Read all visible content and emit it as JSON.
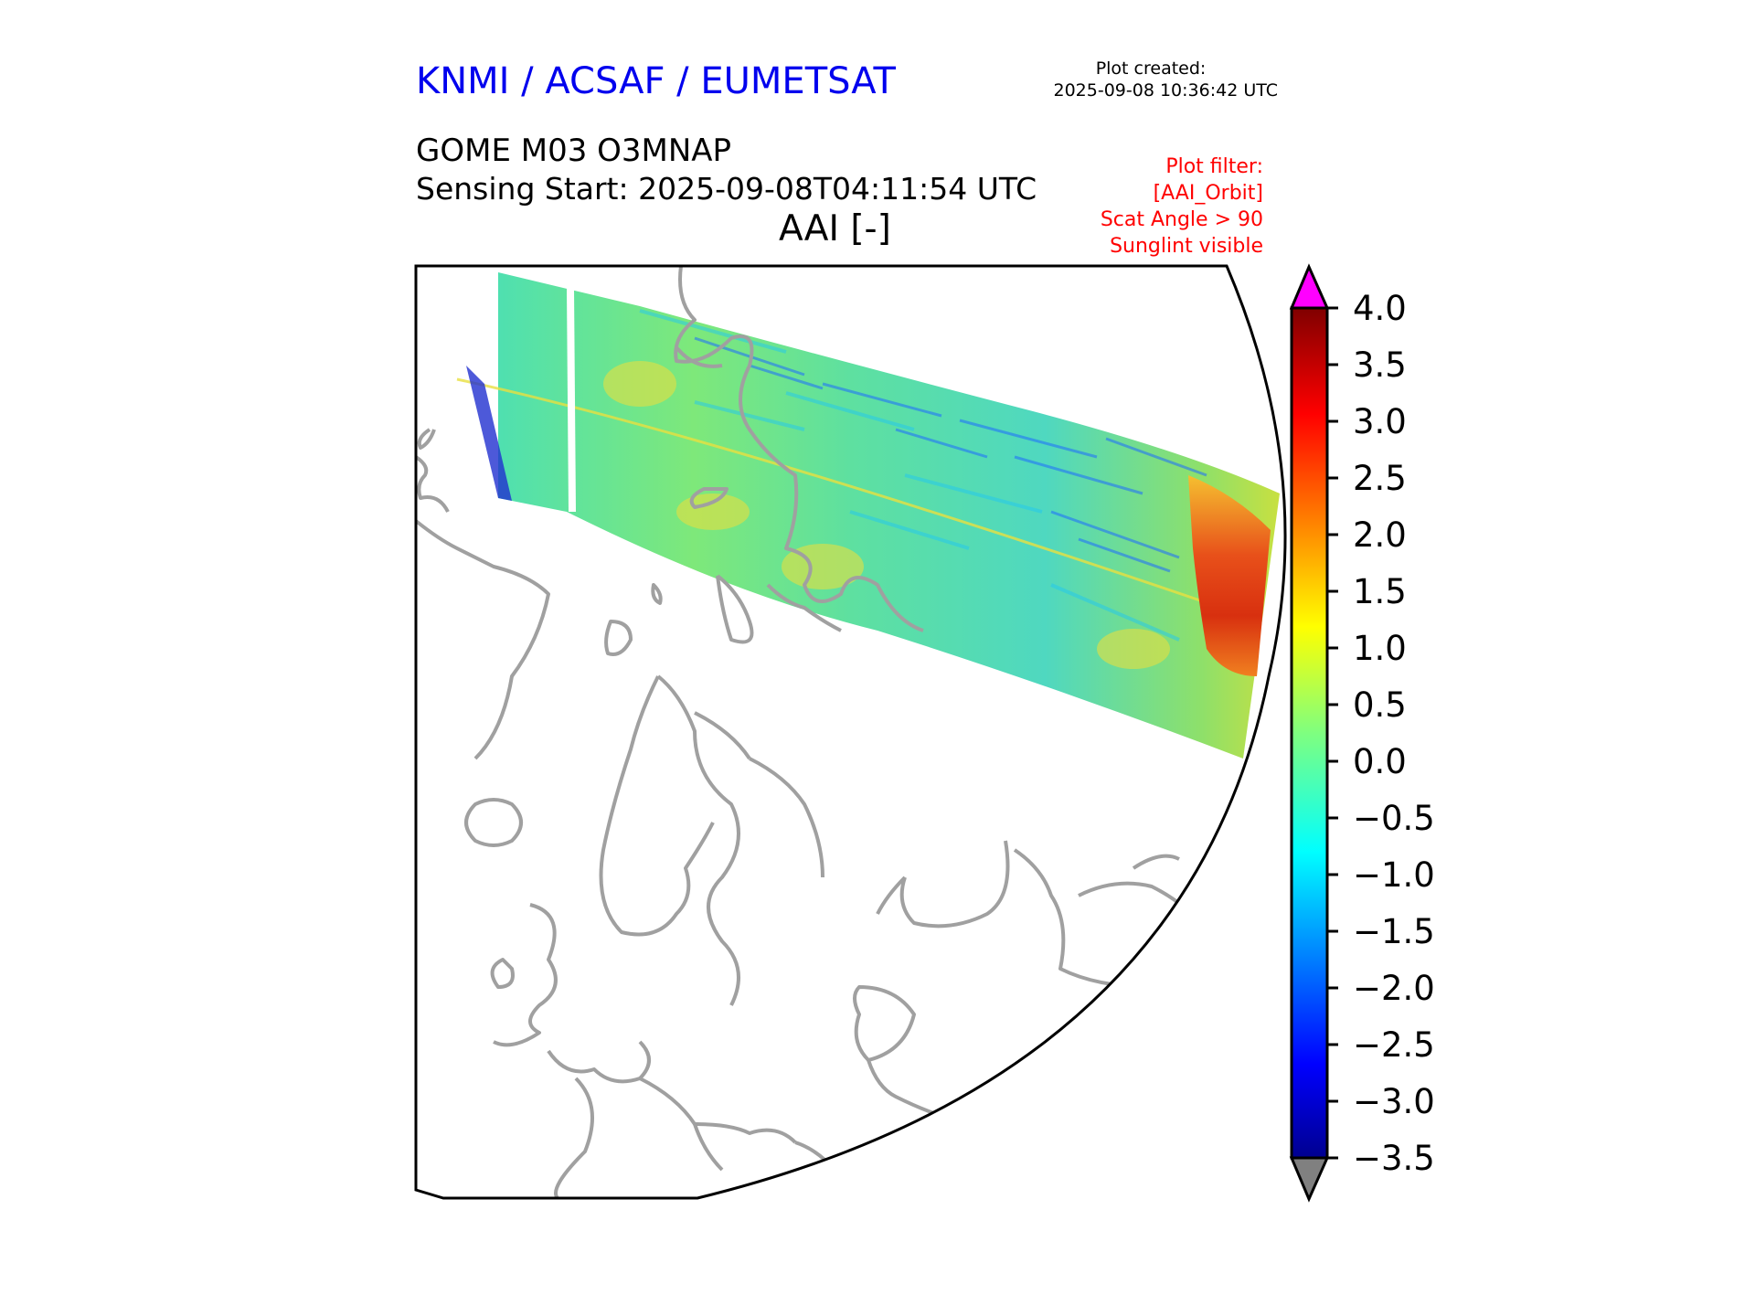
{
  "header": {
    "organization": "KNMI / ACSAF / EUMETSAT",
    "plot_created_label": "Plot created:",
    "plot_created_time": "2025-09-08 10:36:42 UTC"
  },
  "product": {
    "title": "GOME M03 O3MNAP",
    "sensing_start": "Sensing Start: 2025-09-08T04:11:54 UTC",
    "variable": "AAI [-]"
  },
  "filter": {
    "heading": "Plot filter:",
    "lines": [
      "[AAI_Orbit]",
      "Scat Angle > 90",
      "Sunglint visible"
    ]
  },
  "colorbar": {
    "min": -3.5,
    "max": 4.0,
    "ticks": [
      "4.0",
      "3.5",
      "3.0",
      "2.5",
      "2.0",
      "1.5",
      "1.0",
      "0.5",
      "0.0",
      "−0.5",
      "−1.0",
      "−1.5",
      "−2.0",
      "−2.5",
      "−3.0",
      "−3.5"
    ],
    "over_color": "#ff00ff",
    "under_color": "#808080",
    "colormap": "jet"
  },
  "map": {
    "coastline_color": "#a0a0a0",
    "swath_colors": {
      "background": "#6ee889",
      "low": "#1e90ff",
      "high": "#e8341a"
    }
  }
}
